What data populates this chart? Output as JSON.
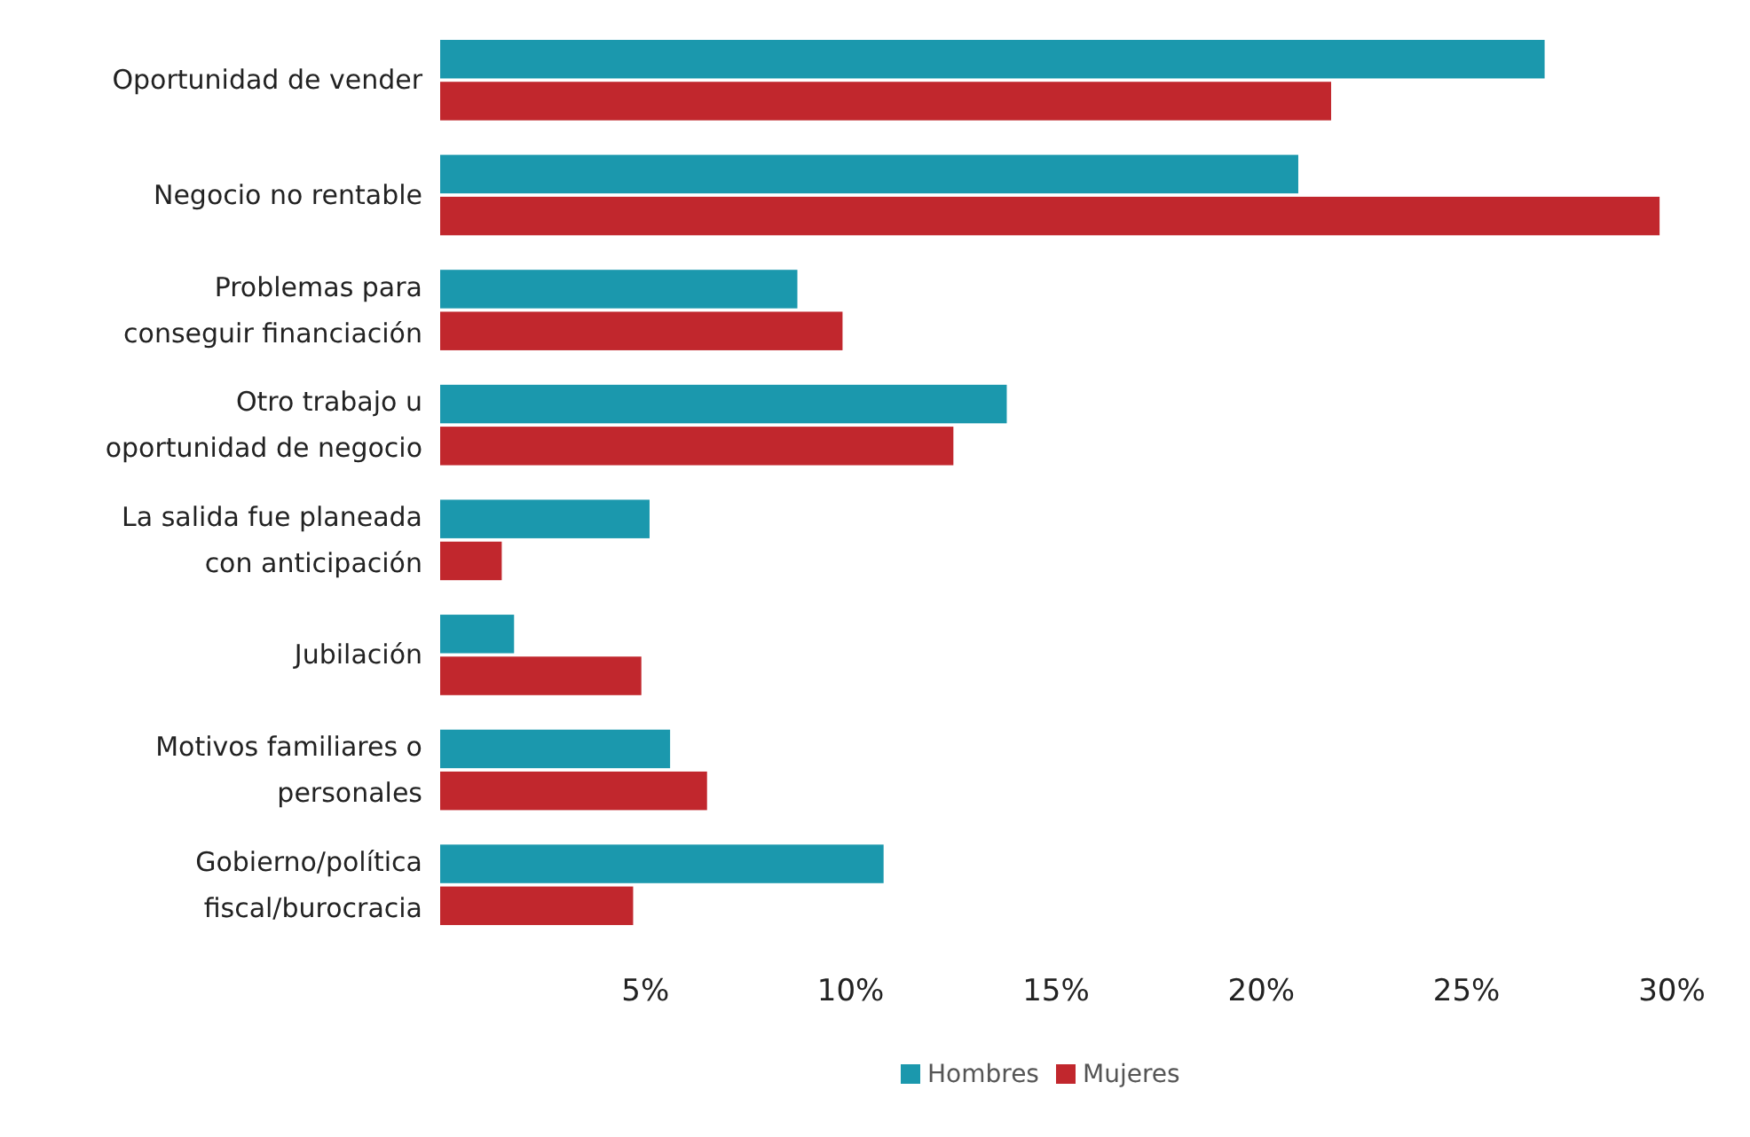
{
  "chart_data": {
    "type": "bar",
    "orientation": "horizontal",
    "categories": [
      "Oportunidad de vender",
      "Negocio no rentable",
      "Problemas para conseguir financiación",
      "Otro trabajo u oportunidad de negocio",
      "La salida fue planeada con anticipación",
      "Jubilación",
      "Motivos familiares o personales",
      "Gobierno/política fiscal/burocracia"
    ],
    "series": [
      {
        "name": "Hombres",
        "color": "#1b98ad",
        "values": [
          26.9,
          20.9,
          8.7,
          13.8,
          5.1,
          1.8,
          5.6,
          10.8
        ]
      },
      {
        "name": "Mujeres",
        "color": "#c1272d",
        "values": [
          21.7,
          29.7,
          9.8,
          12.5,
          1.5,
          4.9,
          6.5,
          4.7
        ]
      }
    ],
    "xlim": [
      0,
      30
    ],
    "xticks": [
      {
        "value": 5,
        "label": "5%"
      },
      {
        "value": 10,
        "label": "10%"
      },
      {
        "value": 15,
        "label": "15%"
      },
      {
        "value": 20,
        "label": "20%"
      },
      {
        "value": 25,
        "label": "25%"
      },
      {
        "value": 30,
        "label": "30%"
      }
    ],
    "grid": false,
    "legend": "bottom"
  }
}
